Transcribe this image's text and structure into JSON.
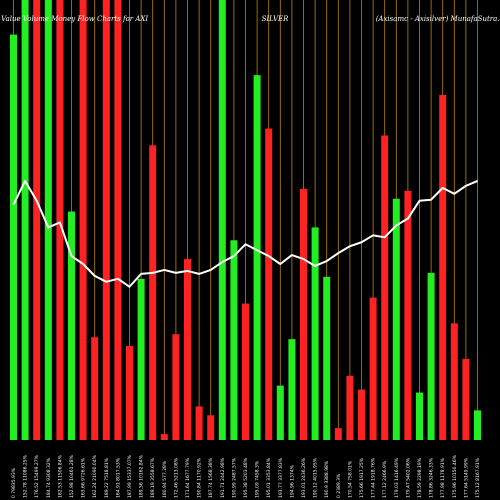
{
  "colors": {
    "background": "#000000",
    "up_bar": "#22ee22",
    "down_bar": "#ff2222",
    "grid_line": "#b8860b",
    "line": "#ffffff",
    "text": "#ffffff"
  },
  "chart_data": {
    "type": "bar",
    "title_left": "Munafa Value Volume Money Flow Charts for AXI",
    "title_center": "SILVER",
    "title_right": "(Axisamc - Axisilver) MunafaSutra.com",
    "grid": "vertical",
    "categories": [
      "0 79835.93%",
      "152.78 11086.25%",
      "176.52 15499.27%",
      "184.74 9308.32%",
      "182.53 11506.84%",
      "152.98 10461.28%",
      "163.66 9726.61%",
      "162.24 21090.04%",
      "189.22 7518.81%",
      "164.91 8017.53%",
      "187.99 15337.07%",
      "189.56 10162.84%",
      "189.19 3558.67%",
      "180.94 577.28%",
      "172.46 5213.08%",
      "171.64 1677.79%",
      "190.84 1170.92%",
      "187.74 1568.38%",
      "191.71 2442.98%",
      "190.99 2487.57%",
      "195.38 5203.48%",
      "195.09 7458.3%",
      "195.01 3353.84%",
      "193.77 3377.83%",
      "194.96 1374%",
      "193.01 2436.26%",
      "190.12 4015.95%",
      "190.9 3388.98%",
      "0 2389.3%",
      "170.54 758.01%",
      "175.66 1917.25%",
      "177.44 1918.76%",
      "177.12 2466.9%",
      "179.03 1416.49%",
      "179.47 5402.06%",
      "178.59 2298.19%",
      "178.86 3246.33%",
      "177.98 1178.91%",
      "175.96 10150.46%",
      "177.64 5149.99%",
      "175.12 8167.91%"
    ],
    "series": [
      {
        "name": "up",
        "colors_per_bar": [
          "up",
          "up",
          "down",
          "up",
          "down",
          "up",
          "down",
          "down",
          "down",
          "down",
          "down",
          "up",
          "down",
          "down",
          "down",
          "down",
          "down",
          "down",
          "up",
          "up",
          "down",
          "up",
          "down",
          "up",
          "up",
          "down",
          "up",
          "up",
          "down",
          "down",
          "down",
          "down",
          "down",
          "up",
          "down",
          "up",
          "up",
          "down",
          "down",
          "down",
          "up"
        ]
      }
    ],
    "values": [
      410,
      445,
      445,
      445,
      445,
      231,
      445,
      104,
      445,
      445,
      95,
      163,
      298,
      6,
      107,
      183,
      34,
      25,
      445,
      202,
      138,
      369,
      315,
      55,
      102,
      254,
      215,
      165,
      12,
      65,
      51,
      144,
      308,
      244,
      252,
      48,
      169,
      349,
      118,
      82,
      30
    ],
    "line_values": [
      238,
      262,
      242,
      215,
      220,
      186,
      178,
      166,
      160,
      163,
      155,
      168,
      169,
      172,
      169,
      171,
      168,
      172,
      180,
      186,
      198,
      192,
      186,
      178,
      187,
      183,
      176,
      181,
      189,
      196,
      200,
      207,
      205,
      217,
      224,
      242,
      243,
      255,
      249,
      257,
      262
    ],
    "ylim": [
      0,
      445
    ]
  }
}
